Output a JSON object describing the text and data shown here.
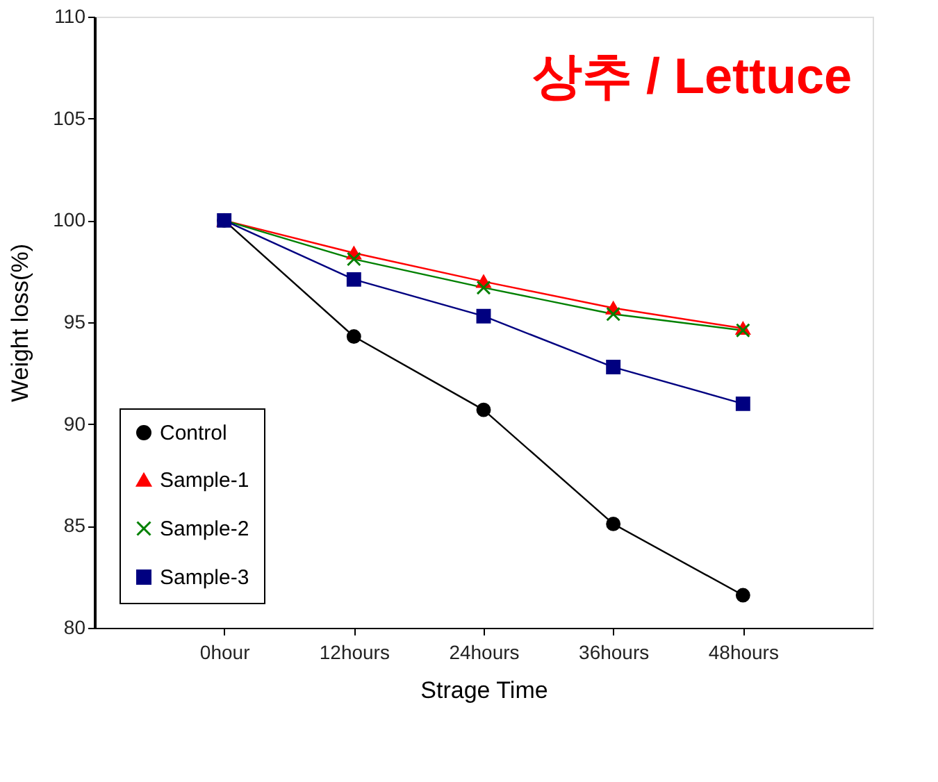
{
  "chart_data": {
    "type": "line",
    "title": "상추 / Lettuce",
    "xlabel": "Strage Time",
    "ylabel": "Weight loss(%)",
    "categories": [
      "0hour",
      "12hours",
      "24hours",
      "36hours",
      "48hours"
    ],
    "ylim": [
      80,
      110
    ],
    "yticks": [
      80,
      85,
      90,
      95,
      100,
      105,
      110
    ],
    "grid": false,
    "legend": "bottom left",
    "series": [
      {
        "name": "Control",
        "color": "#000000",
        "marker": "circle",
        "values": [
          100,
          94.3,
          90.7,
          85.1,
          81.6
        ]
      },
      {
        "name": "Sample-1",
        "color": "#ff0000",
        "marker": "triangle",
        "values": [
          100,
          98.4,
          97.0,
          95.7,
          94.7
        ]
      },
      {
        "name": "Sample-2",
        "color": "#008000",
        "marker": "cross",
        "values": [
          100,
          98.1,
          96.7,
          95.4,
          94.6
        ]
      },
      {
        "name": "Sample-3",
        "color": "#000080",
        "marker": "square",
        "values": [
          100,
          97.1,
          95.3,
          92.8,
          91.0
        ]
      }
    ]
  }
}
